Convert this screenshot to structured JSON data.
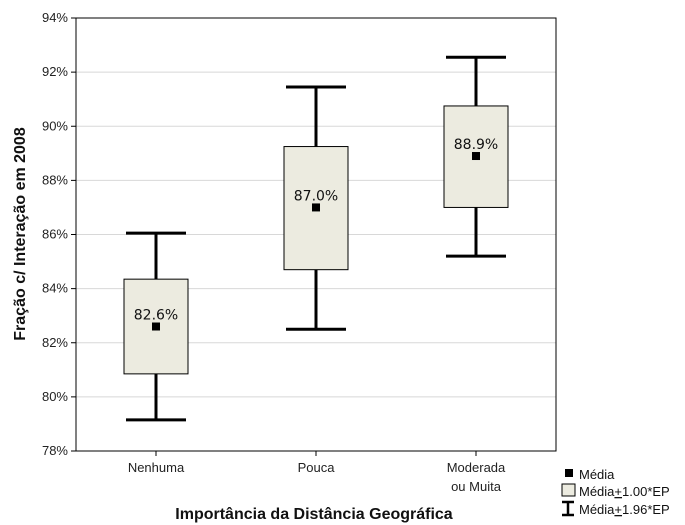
{
  "chart_data": {
    "type": "box",
    "xlabel": "Importância da Distância Geográfica",
    "ylabel": "Fração c/ Interação em 2008",
    "ylim": [
      78,
      94
    ],
    "yticks": [
      78,
      80,
      82,
      84,
      86,
      88,
      90,
      92,
      94
    ],
    "ytick_suffix": "%",
    "grid": true,
    "categories": [
      {
        "lines": [
          "Nenhuma"
        ]
      },
      {
        "lines": [
          "Pouca"
        ]
      },
      {
        "lines": [
          "Moderada",
          "ou Muita"
        ]
      }
    ],
    "boxes": [
      {
        "mean": 82.6,
        "se_low": 80.85,
        "se_high": 84.35,
        "ci_low": 79.15,
        "ci_high": 86.05,
        "label": "82.6%"
      },
      {
        "mean": 87.0,
        "se_low": 84.7,
        "se_high": 89.25,
        "ci_low": 82.5,
        "ci_high": 91.45,
        "label": "87.0%"
      },
      {
        "mean": 88.9,
        "se_low": 87.0,
        "se_high": 90.75,
        "ci_low": 85.2,
        "ci_high": 92.55,
        "label": "88.9%"
      }
    ],
    "legend": {
      "position": "bottom-right",
      "items": [
        {
          "marker": "square",
          "label": "Média"
        },
        {
          "marker": "box",
          "prefix": "Média",
          "pm": "+",
          "suffix": "1.00*EP"
        },
        {
          "marker": "whisker",
          "prefix": "Média",
          "pm": "+",
          "suffix": "1.96*EP"
        }
      ]
    },
    "colors": {
      "box_fill": "#ECEBE0",
      "stroke": "#000000",
      "grid": "#D8D8D8"
    }
  }
}
